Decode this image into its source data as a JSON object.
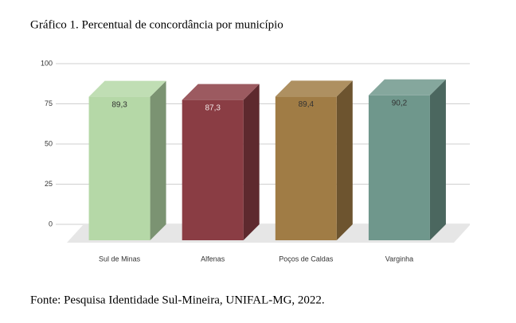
{
  "chart_data": {
    "type": "bar3d",
    "title": "Gráfico 1. Percentual de concordância por município",
    "source": "Fonte: Pesquisa Identidade Sul-Mineira, UNIFAL-MG, 2022.",
    "categories": [
      "Sul de Minas",
      "Alfenas",
      "Poços de Caldas",
      "Varginha"
    ],
    "values": [
      89.3,
      87.3,
      89.4,
      90.2
    ],
    "value_labels": [
      "89,3",
      "87,3",
      "89,4",
      "90,2"
    ],
    "colors": [
      "#b5d8a7",
      "#8a3d44",
      "#a07c45",
      "#6f978c"
    ],
    "ylim": [
      0,
      100
    ],
    "yticks": [
      0,
      25,
      50,
      75,
      100
    ],
    "grid": true
  }
}
